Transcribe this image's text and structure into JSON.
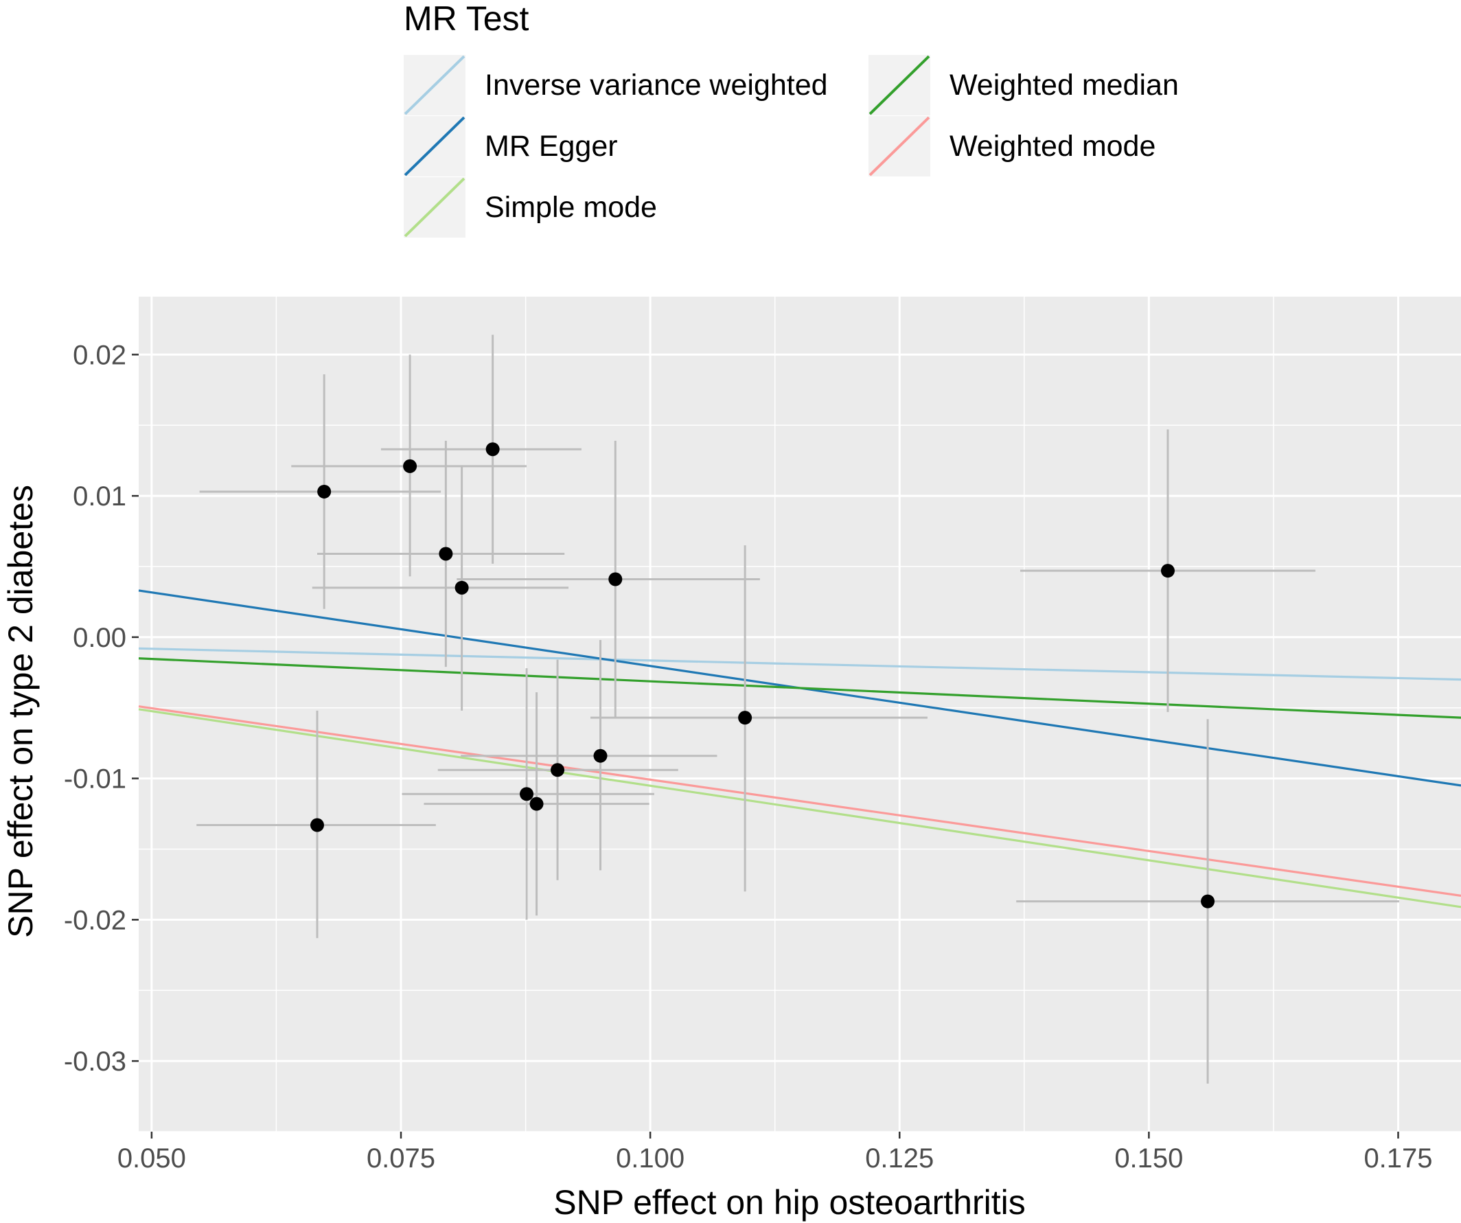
{
  "chart_data": {
    "type": "scatter",
    "title": "",
    "xlabel": "SNP effect on hip osteoarthritis",
    "ylabel": "SNP effect on type 2 diabetes",
    "xlim": [
      0.0487,
      0.1813
    ],
    "ylim": [
      -0.035,
      0.0241
    ],
    "x_ticks": [
      0.05,
      0.075,
      0.1,
      0.125,
      0.15,
      0.175
    ],
    "x_tick_labels": [
      "0.050",
      "0.075",
      "0.100",
      "0.125",
      "0.150",
      "0.175"
    ],
    "y_ticks": [
      -0.03,
      -0.02,
      -0.01,
      0.0,
      0.01,
      0.02
    ],
    "y_tick_labels": [
      "-0.03",
      "-0.02",
      "-0.01",
      "0.00",
      "0.01",
      "0.02"
    ],
    "grid": true,
    "panel_background": "#ebebeb",
    "grid_color": "#ffffff",
    "point_color": "#000000",
    "errorbar_color": "#bdbdbd",
    "legend": {
      "title": "MR Test",
      "position": "top",
      "entries": [
        {
          "name": "Inverse variance weighted",
          "color": "#a6cee3"
        },
        {
          "name": "MR Egger",
          "color": "#1f78b4"
        },
        {
          "name": "Simple mode",
          "color": "#b2df8a"
        },
        {
          "name": "Weighted median",
          "color": "#33a02c"
        },
        {
          "name": "Weighted mode",
          "color": "#fb9a99"
        }
      ]
    },
    "points": [
      {
        "x": 0.0673,
        "y": 0.0103,
        "x_lo": 0.0548,
        "x_hi": 0.079,
        "y_lo": 0.002,
        "y_hi": 0.0186
      },
      {
        "x": 0.0759,
        "y": 0.0121,
        "x_lo": 0.064,
        "x_hi": 0.0876,
        "y_lo": 0.0043,
        "y_hi": 0.02
      },
      {
        "x": 0.0842,
        "y": 0.0133,
        "x_lo": 0.073,
        "x_hi": 0.0931,
        "y_lo": 0.0052,
        "y_hi": 0.0214
      },
      {
        "x": 0.0795,
        "y": 0.0059,
        "x_lo": 0.0666,
        "x_hi": 0.0914,
        "y_lo": -0.0021,
        "y_hi": 0.0139
      },
      {
        "x": 0.0811,
        "y": 0.0035,
        "x_lo": 0.0661,
        "x_hi": 0.0918,
        "y_lo": -0.0052,
        "y_hi": 0.0121
      },
      {
        "x": 0.0965,
        "y": 0.0041,
        "x_lo": 0.0806,
        "x_hi": 0.111,
        "y_lo": -0.0057,
        "y_hi": 0.0139
      },
      {
        "x": 0.1095,
        "y": -0.0057,
        "x_lo": 0.094,
        "x_hi": 0.1278,
        "y_lo": -0.018,
        "y_hi": 0.0065
      },
      {
        "x": 0.095,
        "y": -0.0084,
        "x_lo": 0.081,
        "x_hi": 0.1067,
        "y_lo": -0.0165,
        "y_hi": -0.0002
      },
      {
        "x": 0.0907,
        "y": -0.0094,
        "x_lo": 0.0787,
        "x_hi": 0.1028,
        "y_lo": -0.0172,
        "y_hi": -0.0016
      },
      {
        "x": 0.0876,
        "y": -0.0111,
        "x_lo": 0.0751,
        "x_hi": 0.1004,
        "y_lo": -0.02,
        "y_hi": -0.0022
      },
      {
        "x": 0.0886,
        "y": -0.0118,
        "x_lo": 0.0773,
        "x_hi": 0.0999,
        "y_lo": -0.0197,
        "y_hi": -0.0039
      },
      {
        "x": 0.0666,
        "y": -0.0133,
        "x_lo": 0.0545,
        "x_hi": 0.0785,
        "y_lo": -0.0213,
        "y_hi": -0.0052
      },
      {
        "x": 0.1519,
        "y": 0.0047,
        "x_lo": 0.1371,
        "x_hi": 0.1667,
        "y_lo": -0.0053,
        "y_hi": 0.0147
      },
      {
        "x": 0.1559,
        "y": -0.0187,
        "x_lo": 0.1367,
        "x_hi": 0.1751,
        "y_lo": -0.0316,
        "y_hi": -0.0058
      }
    ],
    "lines": [
      {
        "name": "Inverse variance weighted",
        "color": "#a6cee3",
        "x0": 0.0487,
        "y0": -0.0008,
        "x1": 0.1813,
        "y1": -0.003
      },
      {
        "name": "MR Egger",
        "color": "#1f78b4",
        "x0": 0.0487,
        "y0": 0.0033,
        "x1": 0.1813,
        "y1": -0.0105
      },
      {
        "name": "Weighted median",
        "color": "#33a02c",
        "x0": 0.0487,
        "y0": -0.0015,
        "x1": 0.1813,
        "y1": -0.0057
      },
      {
        "name": "Weighted mode",
        "color": "#fb9a99",
        "x0": 0.0487,
        "y0": -0.0049,
        "x1": 0.1813,
        "y1": -0.0183
      },
      {
        "name": "Simple mode",
        "color": "#b2df8a",
        "x0": 0.0487,
        "y0": -0.0051,
        "x1": 0.1813,
        "y1": -0.0191
      }
    ]
  }
}
